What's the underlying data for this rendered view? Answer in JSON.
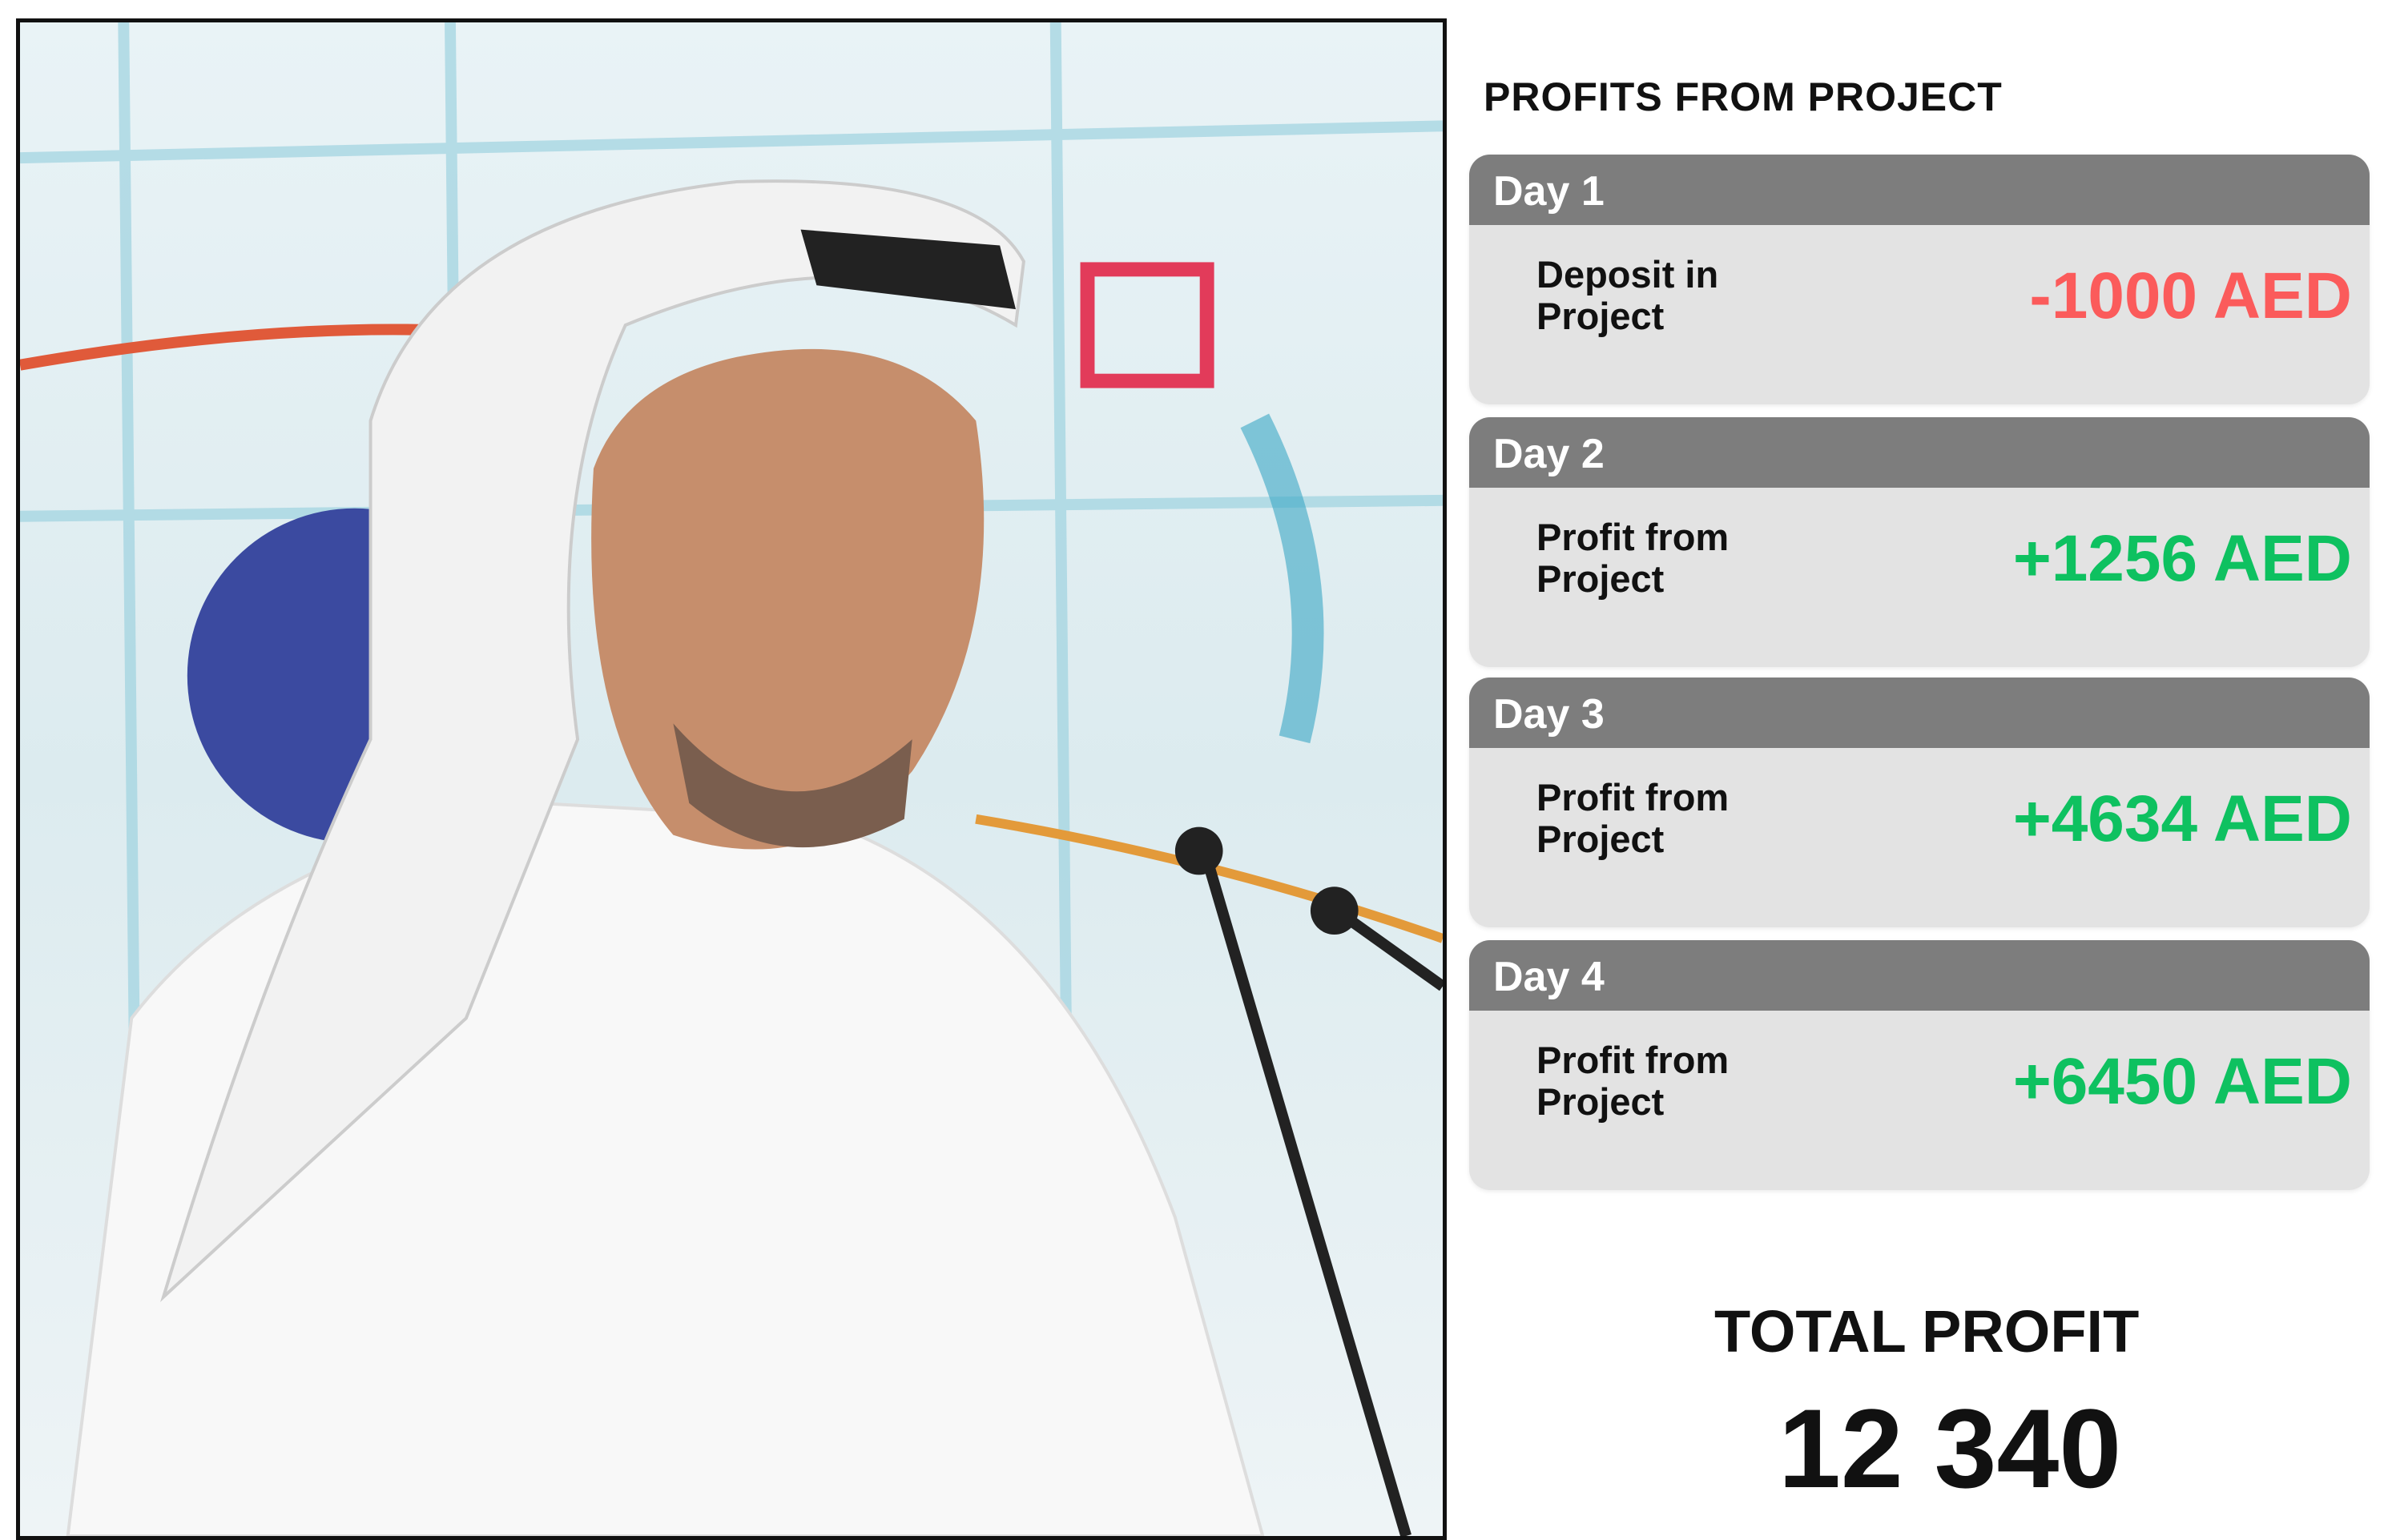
{
  "title": "PROFITS FROM PROJECT",
  "days": [
    {
      "day": "Day 1",
      "label_line1": "Deposit in",
      "label_line2": "Project",
      "amount": "-1000 AED",
      "type": "negative"
    },
    {
      "day": "Day 2",
      "label_line1": "Profit from",
      "label_line2": "Project",
      "amount": "+1256 AED",
      "type": "positive"
    },
    {
      "day": "Day 3",
      "label_line1": "Profit from",
      "label_line2": "Project",
      "amount": "+4634 AED",
      "type": "positive"
    },
    {
      "day": "Day 4",
      "label_line1": "Profit from",
      "label_line2": "Project",
      "amount": "+6450 AED",
      "type": "positive"
    }
  ],
  "total": {
    "label": "TOTAL PROFIT",
    "value": "12 340"
  },
  "colors": {
    "negative": "#fb5b5b",
    "positive": "#0ec160",
    "header": "#7d7d7d",
    "card": "#e3e3e3"
  }
}
